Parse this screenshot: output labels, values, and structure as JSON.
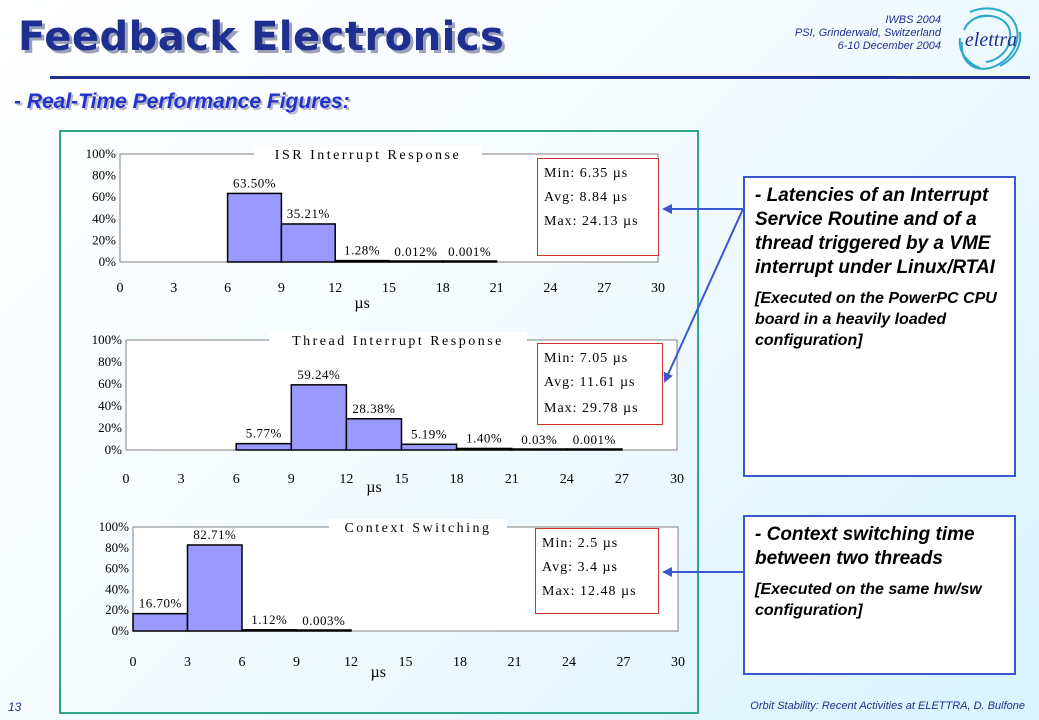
{
  "header": {
    "title": "Feedback Electronics",
    "conference": "IWBS 2004",
    "location": "PSI, Grinderwald, Switzerland",
    "dates": "6-10 December 2004",
    "logo_text": "elettra"
  },
  "subtitle": "- Real-Time Performance Figures:",
  "chart_data": [
    {
      "type": "bar",
      "title": "ISR Interrupt Response",
      "xlabel": "µs",
      "x_ticks": [
        0,
        3,
        6,
        9,
        12,
        15,
        18,
        21,
        24,
        27,
        30
      ],
      "xlim": [
        0,
        30
      ],
      "ylim": [
        0,
        100
      ],
      "y_ticks": [
        "0%",
        "20%",
        "40%",
        "60%",
        "80%",
        "100%"
      ],
      "bins": [
        [
          6,
          9
        ],
        [
          9,
          12
        ],
        [
          12,
          15
        ],
        [
          15,
          18
        ],
        [
          18,
          21
        ]
      ],
      "values": [
        63.5,
        35.21,
        1.28,
        0.012,
        0.001
      ],
      "labels": [
        "63.50%",
        "35.21%",
        "1.28%",
        "0.012%",
        "0.001%"
      ],
      "stats": [
        "Min: 6.35 µs",
        "Avg: 8.84 µs",
        "Max: 24.13 µs"
      ]
    },
    {
      "type": "bar",
      "title": "Thread Interrupt Response",
      "xlabel": "µs",
      "x_ticks": [
        0,
        3,
        6,
        9,
        12,
        15,
        18,
        21,
        24,
        27,
        30
      ],
      "xlim": [
        0,
        30
      ],
      "ylim": [
        0,
        100
      ],
      "y_ticks": [
        "0%",
        "20%",
        "40%",
        "60%",
        "80%",
        "100%"
      ],
      "bins": [
        [
          6,
          9
        ],
        [
          9,
          12
        ],
        [
          12,
          15
        ],
        [
          15,
          18
        ],
        [
          18,
          21
        ],
        [
          21,
          24
        ],
        [
          24,
          27
        ]
      ],
      "values": [
        5.77,
        59.24,
        28.38,
        5.19,
        1.4,
        0.03,
        0.001
      ],
      "labels": [
        "5.77%",
        "59.24%",
        "28.38%",
        "5.19%",
        "1.40%",
        "0.03%",
        "0.001%"
      ],
      "stats": [
        "Min: 7.05 µs",
        "Avg: 11.61 µs",
        "Max: 29.78 µs"
      ]
    },
    {
      "type": "bar",
      "title": "Context Switching",
      "xlabel": "µs",
      "x_ticks": [
        0,
        3,
        6,
        9,
        12,
        15,
        18,
        21,
        24,
        27,
        30
      ],
      "xlim": [
        0,
        30
      ],
      "ylim": [
        0,
        100
      ],
      "y_ticks": [
        "0%",
        "20%",
        "40%",
        "60%",
        "80%",
        "100%"
      ],
      "bins": [
        [
          0,
          3
        ],
        [
          3,
          6
        ],
        [
          6,
          9
        ],
        [
          9,
          12
        ]
      ],
      "values": [
        16.7,
        82.71,
        1.12,
        0.003
      ],
      "labels": [
        "16.70%",
        "82.71%",
        "1.12%",
        "0.003%"
      ],
      "stats": [
        "Min: 2.5 µs",
        "Avg: 3.4 µs",
        "Max: 12.48 µs"
      ]
    }
  ],
  "callouts": {
    "latency": {
      "main": "- Latencies of an Interrupt Service Routine and of a thread triggered by a VME interrupt under Linux/RTAI",
      "note": "[Executed on the PowerPC CPU board in a heavily loaded configuration]"
    },
    "context": {
      "main": "- Context switching time between two threads",
      "note": "[Executed on the same hw/sw configuration]"
    }
  },
  "footer": {
    "page": "13",
    "text": "Orbit Stability: Recent Activities at ELETTRA, D. Bulfone"
  },
  "colors": {
    "bar_fill": "#9999ff",
    "title_blue": "#1f2f8f",
    "frame": "#2ea88a",
    "stats_border": "#d03030",
    "callout_border": "#3a57d0"
  }
}
